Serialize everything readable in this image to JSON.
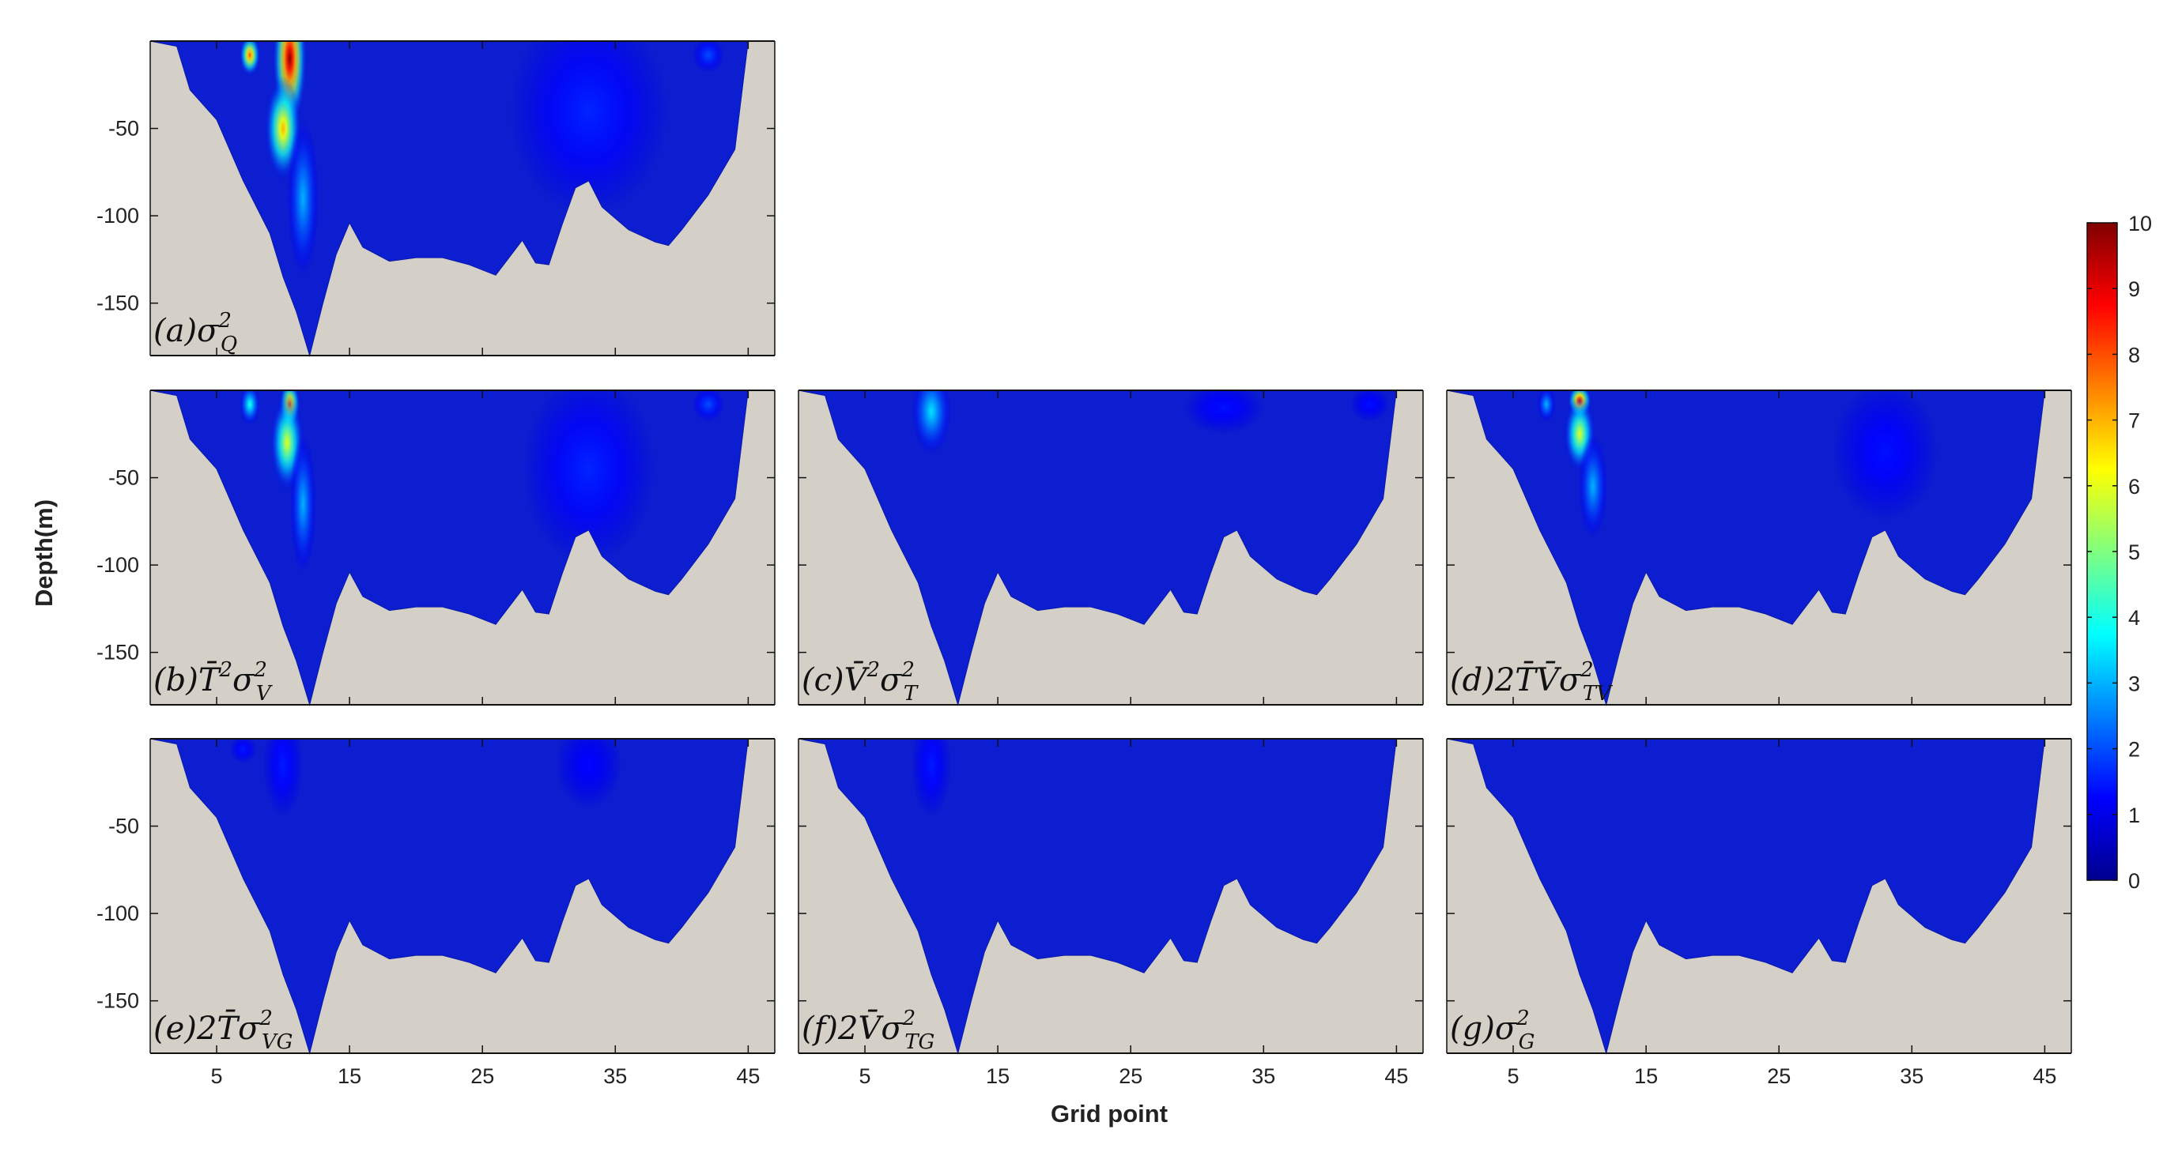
{
  "colors": {
    "land": "#d4d0c8",
    "water_base": "#0c1ed0",
    "colormap": [
      "#00008f",
      "#0000ff",
      "#0080ff",
      "#00ffff",
      "#80ff80",
      "#ffff00",
      "#ff8000",
      "#ff0000",
      "#800000"
    ]
  },
  "chart_data": {
    "type": "heatmap",
    "xlabel": "Grid point",
    "ylabel": "Depth(m)",
    "xlim": [
      0,
      47
    ],
    "ylim": [
      -180,
      0
    ],
    "x_ticks": [
      5,
      15,
      25,
      35,
      45
    ],
    "x_tick_labels": [
      "5",
      "15",
      "25",
      "35",
      "45"
    ],
    "y_ticks": [
      -50,
      -100,
      -150
    ],
    "y_tick_labels": [
      "-50",
      "-100",
      "-150"
    ],
    "colorbar": {
      "min": 0,
      "max": 10,
      "ticks": [
        0,
        1,
        2,
        3,
        4,
        5,
        6,
        7,
        8,
        9,
        10
      ],
      "tick_labels": [
        "0",
        "1",
        "2",
        "3",
        "4",
        "5",
        "6",
        "7",
        "8",
        "9",
        "10"
      ]
    },
    "bathymetry": {
      "x": [
        0,
        2,
        3,
        5,
        7,
        9,
        10,
        11,
        12,
        13,
        14,
        15,
        16,
        18,
        20,
        22,
        24,
        26,
        28,
        29,
        30,
        31,
        32,
        33,
        34,
        36,
        38,
        39,
        40,
        42,
        44,
        45,
        47
      ],
      "depth": [
        0,
        -3,
        -28,
        -45,
        -80,
        -110,
        -135,
        -155,
        -180,
        -150,
        -122,
        -104,
        -118,
        -126,
        -124,
        -124,
        -128,
        -134,
        -114,
        -127,
        -128,
        -105,
        -84,
        -80,
        -95,
        -108,
        -115,
        -117,
        -108,
        -88,
        -62,
        0,
        0
      ]
    },
    "panels": [
      {
        "id": "a",
        "label_prefix": "(a)",
        "label_main": "σ",
        "label_sup": "2",
        "label_sub": "Q",
        "hotspots": [
          {
            "x": 10.5,
            "depth": -10,
            "value": 10,
            "rx": 1.3,
            "ry": 40
          },
          {
            "x": 10.0,
            "depth": -50,
            "value": 7,
            "rx": 1.4,
            "ry": 30
          },
          {
            "x": 7.5,
            "depth": -8,
            "value": 8,
            "rx": 0.8,
            "ry": 12
          },
          {
            "x": 11.5,
            "depth": -90,
            "value": 3,
            "rx": 1.2,
            "ry": 45
          },
          {
            "x": 33,
            "depth": -40,
            "value": 1.6,
            "rx": 6,
            "ry": 60
          },
          {
            "x": 42,
            "depth": -8,
            "value": 2,
            "rx": 1.2,
            "ry": 10
          }
        ]
      },
      {
        "id": "b",
        "label_prefix": "(b)",
        "label_main": "T̄",
        "label_pre_sup": "2",
        "label_post": "σ",
        "label_sup": "2",
        "label_sub": "V",
        "hotspots": [
          {
            "x": 10.5,
            "depth": -8,
            "value": 8,
            "rx": 0.8,
            "ry": 14
          },
          {
            "x": 10.3,
            "depth": -30,
            "value": 6,
            "rx": 1.3,
            "ry": 28
          },
          {
            "x": 7.5,
            "depth": -8,
            "value": 4,
            "rx": 0.8,
            "ry": 12
          },
          {
            "x": 11.5,
            "depth": -65,
            "value": 3,
            "rx": 1.0,
            "ry": 40
          },
          {
            "x": 33,
            "depth": -45,
            "value": 1.6,
            "rx": 5,
            "ry": 55
          },
          {
            "x": 42,
            "depth": -8,
            "value": 2,
            "rx": 1.2,
            "ry": 10
          }
        ]
      },
      {
        "id": "c",
        "label_prefix": "(c)",
        "label_main": "V̄",
        "label_pre_sup": "2",
        "label_post": "σ",
        "label_sup": "2",
        "label_sub": "T",
        "hotspots": [
          {
            "x": 10,
            "depth": -12,
            "value": 3.5,
            "rx": 1.5,
            "ry": 25
          },
          {
            "x": 32,
            "depth": -10,
            "value": 1.4,
            "rx": 3,
            "ry": 15
          },
          {
            "x": 43,
            "depth": -8,
            "value": 1.4,
            "rx": 1.5,
            "ry": 10
          }
        ]
      },
      {
        "id": "d",
        "label_prefix": "(d)",
        "label_main": "2T̄V̄",
        "label_post": "σ",
        "label_sup": "2",
        "label_sub": "TV",
        "hotspots": [
          {
            "x": 10,
            "depth": -6,
            "value": 9,
            "rx": 0.9,
            "ry": 10
          },
          {
            "x": 10,
            "depth": -25,
            "value": 6,
            "rx": 1.2,
            "ry": 22
          },
          {
            "x": 7.5,
            "depth": -8,
            "value": 3,
            "rx": 0.7,
            "ry": 10
          },
          {
            "x": 11,
            "depth": -55,
            "value": 3,
            "rx": 1.1,
            "ry": 30
          },
          {
            "x": 33,
            "depth": -35,
            "value": 1.4,
            "rx": 4,
            "ry": 40
          }
        ]
      },
      {
        "id": "e",
        "label_prefix": "(e)",
        "label_main": "2T̄",
        "label_post": "σ",
        "label_sup": "2",
        "label_sub": "VG",
        "hotspots": [
          {
            "x": 10,
            "depth": -15,
            "value": 1.5,
            "rx": 1.5,
            "ry": 30
          },
          {
            "x": 7,
            "depth": -6,
            "value": 1.5,
            "rx": 1,
            "ry": 8
          },
          {
            "x": 33,
            "depth": -15,
            "value": 1.3,
            "rx": 2.5,
            "ry": 25
          }
        ]
      },
      {
        "id": "f",
        "label_prefix": "(f)",
        "label_main": "2V̄",
        "label_post": "σ",
        "label_sup": "2",
        "label_sub": "TG",
        "hotspots": [
          {
            "x": 10,
            "depth": -15,
            "value": 1.5,
            "rx": 1.5,
            "ry": 30
          }
        ]
      },
      {
        "id": "g",
        "label_prefix": "(g)",
        "label_main": "σ",
        "label_sup": "2",
        "label_sub": "G",
        "hotspots": []
      }
    ]
  }
}
